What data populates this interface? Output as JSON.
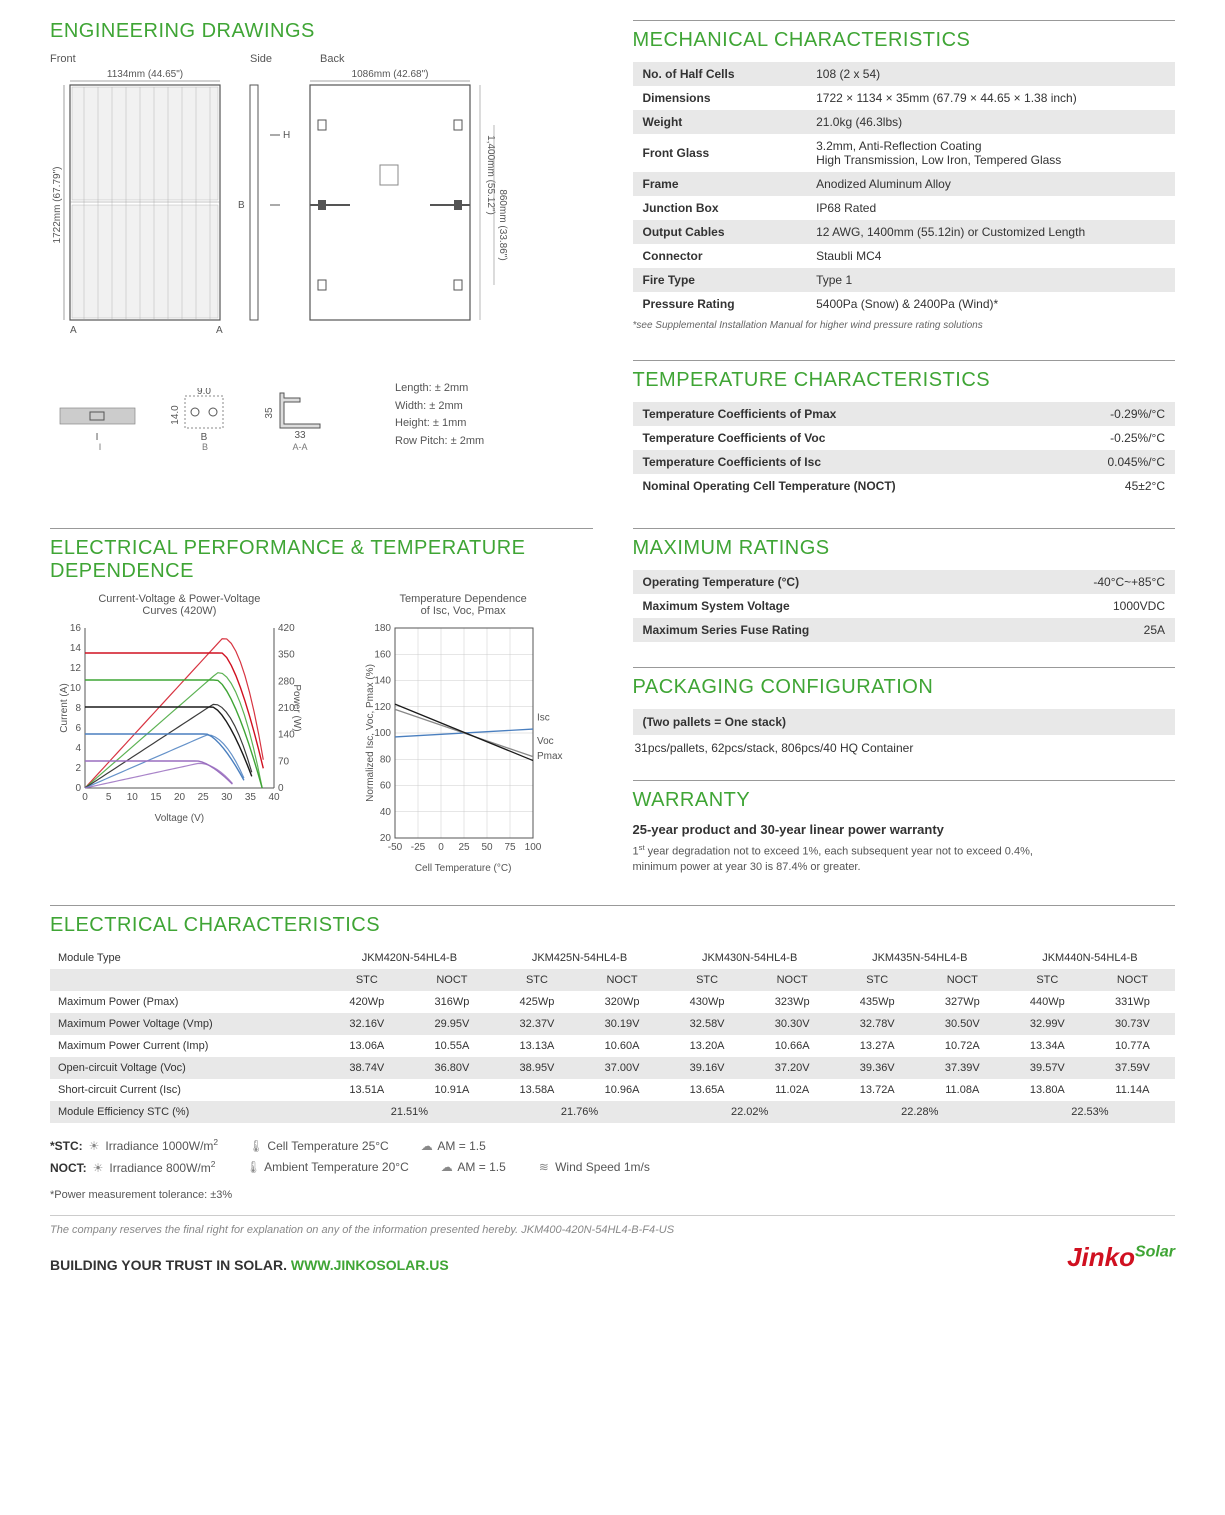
{
  "colors": {
    "accent": "#3fa535",
    "shade": "#e8e8e8",
    "text": "#333333"
  },
  "engineering": {
    "title": "ENGINEERING DRAWINGS",
    "labels": {
      "front": "Front",
      "side": "Side",
      "back": "Back"
    },
    "dims": {
      "front_w": "1134mm (44.65\")",
      "front_h": "1722mm (67.79\")",
      "back_w": "1086mm (42.68\")",
      "back_h1": "1,400mm (55.12\")",
      "back_h2": "860mm (33.86\")",
      "frame_w": "33",
      "frame_h": "35",
      "frame_t1": "9.0",
      "frame_t2": "14.0"
    },
    "section_labels": {
      "i": "I",
      "b": "B",
      "aa": "A-A"
    },
    "tolerances": [
      "Length: ± 2mm",
      "Width: ± 2mm",
      "Height: ± 1mm",
      "Row Pitch: ± 2mm"
    ]
  },
  "mechanical": {
    "title": "MECHANICAL CHARACTERISTICS",
    "rows": [
      [
        "No. of Half Cells",
        "108 (2 x 54)"
      ],
      [
        "Dimensions",
        "1722 × 1134 × 35mm (67.79 × 44.65 × 1.38 inch)"
      ],
      [
        "Weight",
        "21.0kg (46.3lbs)"
      ],
      [
        "Front Glass",
        "3.2mm, Anti-Reflection Coating\nHigh Transmission, Low Iron, Tempered Glass"
      ],
      [
        "Frame",
        "Anodized Aluminum Alloy"
      ],
      [
        "Junction Box",
        "IP68 Rated"
      ],
      [
        "Output Cables",
        "12 AWG, 1400mm (55.12in) or Customized Length"
      ],
      [
        "Connector",
        "Staubli MC4"
      ],
      [
        "Fire Type",
        "Type 1"
      ],
      [
        "Pressure Rating",
        "5400Pa (Snow) & 2400Pa (Wind)*"
      ]
    ],
    "footnote": "*see Supplemental Installation Manual for higher wind pressure rating solutions"
  },
  "temperature": {
    "title": "TEMPERATURE CHARACTERISTICS",
    "rows": [
      [
        "Temperature Coefficients of Pmax",
        "-0.29%/°C"
      ],
      [
        "Temperature Coefficients of Voc",
        "-0.25%/°C"
      ],
      [
        "Temperature Coefficients of Isc",
        "0.045%/°C"
      ],
      [
        "Nominal Operating Cell Temperature (NOCT)",
        "45±2°C"
      ]
    ]
  },
  "maxratings": {
    "title": "MAXIMUM RATINGS",
    "rows": [
      [
        "Operating Temperature (°C)",
        "-40°C~+85°C"
      ],
      [
        "Maximum System Voltage",
        "1000VDC"
      ],
      [
        "Maximum Series Fuse Rating",
        "25A"
      ]
    ]
  },
  "packaging": {
    "title": "PACKAGING CONFIGURATION",
    "box": "(Two pallets = One stack)",
    "text": "31pcs/pallets, 62pcs/stack, 806pcs/40 HQ Container"
  },
  "warranty": {
    "title": "WARRANTY",
    "headline": "25-year product and 30-year linear power warranty",
    "body": "1st year degradation not to exceed 1%, each subsequent year not to exceed 0.4%, minimum power at year 30 is 87.4% or greater."
  },
  "elec_perf": {
    "title": "ELECTRICAL PERFORMANCE & TEMPERATURE DEPENDENCE",
    "chart1": {
      "title": "Current-Voltage & Power-Voltage\nCurves (420W)",
      "xlabel": "Voltage (V)",
      "y1label": "Current (A)",
      "y2label": "Power (W)",
      "xlim": [
        0,
        40
      ],
      "xtick_step": 5,
      "y1lim": [
        0,
        16
      ],
      "y1tick_step": 2,
      "y2lim": [
        0,
        420
      ],
      "y2ticks": [
        0,
        70,
        140,
        210,
        280,
        350,
        420
      ],
      "iv_curves": [
        {
          "color": "#d01020",
          "isc": 13.5,
          "voc": 38.7,
          "imp": 13.1,
          "vmp": 32.2
        },
        {
          "color": "#3fa535",
          "isc": 10.8,
          "voc": 37.5,
          "imp": 10.5,
          "vmp": 31.0
        },
        {
          "color": "#1a1a1a",
          "isc": 8.1,
          "voc": 36.2,
          "imp": 7.9,
          "vmp": 30.0
        },
        {
          "color": "#4a7fbf",
          "isc": 5.4,
          "voc": 34.5,
          "imp": 5.2,
          "vmp": 28.5
        },
        {
          "color": "#9a6fbf",
          "isc": 2.7,
          "voc": 32.0,
          "imp": 2.6,
          "vmp": 26.5
        }
      ]
    },
    "chart2": {
      "title": "Temperature Dependence\nof Isc, Voc, Pmax",
      "xlabel": "Cell Temperature (°C)",
      "ylabel": "Normalized Isc, Voc, Pmax (%)",
      "xlim": [
        -50,
        100
      ],
      "xtick_step": 25,
      "ylim": [
        20,
        180
      ],
      "ytick_step": 20,
      "lines": [
        {
          "label": "Isc",
          "color": "#4a7fbf",
          "p1": [
            -50,
            97
          ],
          "p2": [
            100,
            103
          ]
        },
        {
          "label": "Voc",
          "color": "#888888",
          "p1": [
            -50,
            118
          ],
          "p2": [
            100,
            82
          ]
        },
        {
          "label": "Pmax",
          "color": "#1a1a1a",
          "p1": [
            -50,
            122
          ],
          "p2": [
            100,
            79
          ]
        }
      ]
    }
  },
  "elec_char": {
    "title": "ELECTRICAL CHARACTERISTICS",
    "module_label": "Module Type",
    "modules": [
      "JKM420N-54HL4-B",
      "JKM425N-54HL4-B",
      "JKM430N-54HL4-B",
      "JKM435N-54HL4-B",
      "JKM440N-54HL4-B"
    ],
    "cond_labels": [
      "STC",
      "NOCT"
    ],
    "rows": [
      {
        "label": "Maximum Power (Pmax)",
        "vals": [
          "420Wp",
          "316Wp",
          "425Wp",
          "320Wp",
          "430Wp",
          "323Wp",
          "435Wp",
          "327Wp",
          "440Wp",
          "331Wp"
        ]
      },
      {
        "label": "Maximum Power Voltage (Vmp)",
        "vals": [
          "32.16V",
          "29.95V",
          "32.37V",
          "30.19V",
          "32.58V",
          "30.30V",
          "32.78V",
          "30.50V",
          "32.99V",
          "30.73V"
        ],
        "shade": true
      },
      {
        "label": "Maximum Power Current (Imp)",
        "vals": [
          "13.06A",
          "10.55A",
          "13.13A",
          "10.60A",
          "13.20A",
          "10.66A",
          "13.27A",
          "10.72A",
          "13.34A",
          "10.77A"
        ]
      },
      {
        "label": "Open-circuit Voltage (Voc)",
        "vals": [
          "38.74V",
          "36.80V",
          "38.95V",
          "37.00V",
          "39.16V",
          "37.20V",
          "39.36V",
          "37.39V",
          "39.57V",
          "37.59V"
        ],
        "shade": true
      },
      {
        "label": "Short-circuit Current (Isc)",
        "vals": [
          "13.51A",
          "10.91A",
          "13.58A",
          "10.96A",
          "13.65A",
          "11.02A",
          "13.72A",
          "11.08A",
          "13.80A",
          "11.14A"
        ]
      }
    ],
    "eff_label": "Module Efficiency STC (%)",
    "eff_vals": [
      "21.51%",
      "21.76%",
      "22.02%",
      "22.28%",
      "22.53%"
    ]
  },
  "footer_notes": {
    "stc_label": "*STC:",
    "noct_label": "NOCT:",
    "irr_stc": "Irradiance 1000W/m",
    "irr_noct": "Irradiance 800W/m",
    "cell_temp": "Cell Temperature 25°C",
    "amb_temp": "Ambient Temperature 20°C",
    "am": "AM = 1.5",
    "wind": "Wind Speed 1m/s",
    "tol": "*Power measurement tolerance: ±3%",
    "disclaimer": "The company reserves the final right for explanation on any of the information presented hereby. JKM400-420N-54HL4-B-F4-US",
    "tagline": "BUILDING YOUR TRUST IN SOLAR.",
    "url": "WWW.JINKOSOLAR.US",
    "brand1": "Jinko",
    "brand2": "Solar"
  }
}
